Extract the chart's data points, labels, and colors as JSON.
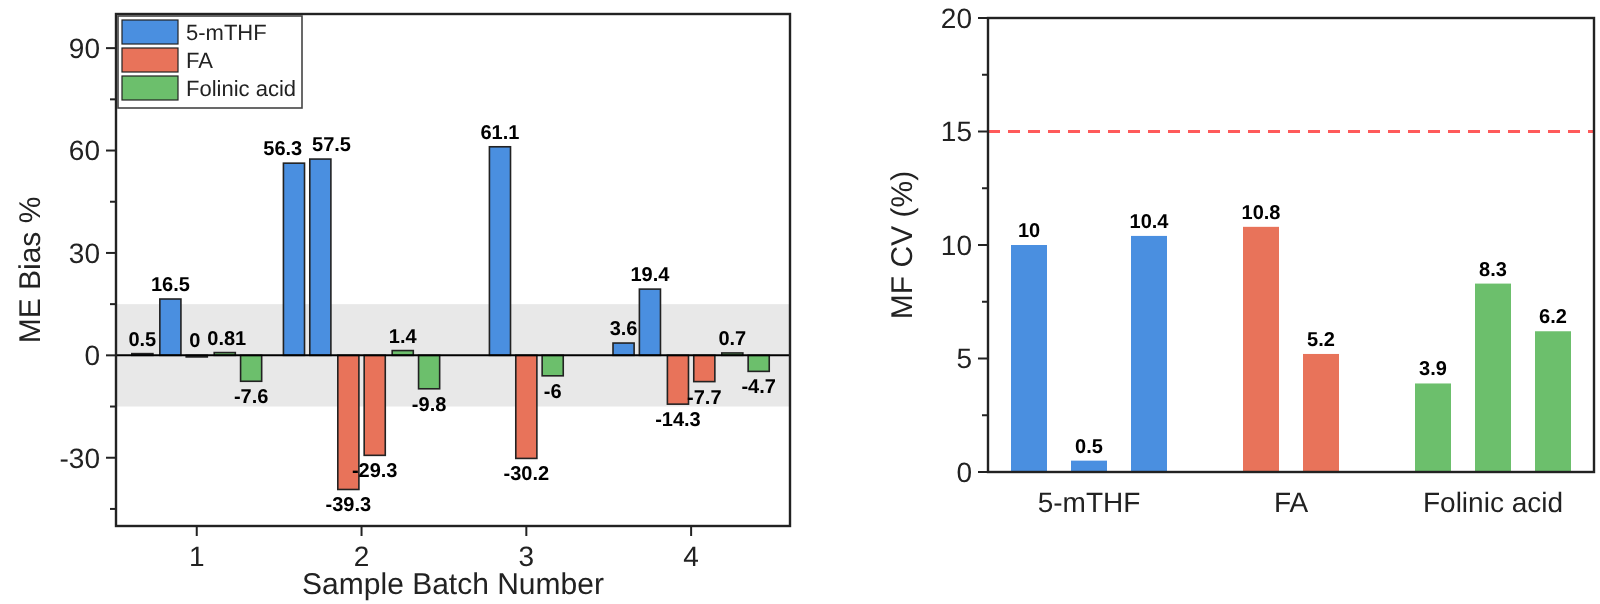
{
  "chart_data": [
    {
      "type": "bar",
      "xlabel": "Sample Batch Number",
      "ylabel": "ME Bias %",
      "xlim": [
        0.51,
        4.6
      ],
      "xticks": [
        1,
        2,
        3,
        4
      ],
      "ylim": [
        -50,
        100
      ],
      "yticks": [
        {
          "value": -45,
          "label": null
        },
        -30,
        {
          "value": -15,
          "label": null
        },
        0,
        {
          "value": 15,
          "label": null
        },
        30,
        {
          "value": 45,
          "label": null
        },
        60,
        {
          "value": 75,
          "label": null
        },
        90
      ],
      "legend": "top left",
      "data_labels": true,
      "bands": [
        {
          "axis": "y",
          "from": -15,
          "to": 15,
          "color": "#e8e8e8"
        }
      ],
      "series": [
        {
          "name": "5-mTHF",
          "color": "#4a8fe0",
          "x": [
            0.67,
            0.84,
            1.59,
            1.75,
            2.84,
            3.59,
            3.75
          ],
          "values": [
            0.5,
            16.5,
            56.3,
            57.5,
            61.1,
            3.6,
            19.4
          ]
        },
        {
          "name": "FA",
          "color": "#e8735a",
          "x": [
            1.0,
            1.92,
            2.08,
            3.0,
            3.92,
            4.08
          ],
          "values": [
            0,
            -39.3,
            -29.3,
            -30.2,
            -14.3,
            -7.7
          ]
        },
        {
          "name": "Folinic acid",
          "color": "#6cbf6c",
          "x": [
            1.17,
            1.33,
            2.25,
            2.41,
            3.16,
            4.25,
            4.41
          ],
          "values": [
            0.81,
            -7.6,
            1.4,
            -9.8,
            -6,
            0.7,
            -4.7
          ]
        }
      ]
    },
    {
      "type": "bar",
      "ylabel": "MF CV (%)",
      "categories": [
        "5-mTHF",
        "FA",
        "Folinic acid"
      ],
      "ylim": [
        0,
        20
      ],
      "yticks": [
        0,
        {
          "value": 2.5,
          "label": null
        },
        5,
        {
          "value": 7.5,
          "label": null
        },
        10,
        {
          "value": 12.5,
          "label": null
        },
        15,
        {
          "value": 17.5,
          "label": null
        },
        20
      ],
      "data_labels": true,
      "ref_lines": [
        {
          "axis": "y",
          "value": 15,
          "color": "#ff5a5a",
          "line_style": "dashed"
        }
      ],
      "series": [
        {
          "colors": [
            "#4a8fe0",
            "#e8735a",
            "#6cbf6c"
          ],
          "values": [
            10,
            10.8,
            3.9
          ]
        },
        {
          "colors": [
            "#4a8fe0",
            "#e8735a",
            "#6cbf6c"
          ],
          "values": [
            0.5,
            5.2,
            8.3
          ]
        },
        {
          "colors": [
            "#4a8fe0",
            null,
            "#6cbf6c"
          ],
          "values": [
            10.4,
            null,
            6.2
          ]
        }
      ]
    }
  ]
}
